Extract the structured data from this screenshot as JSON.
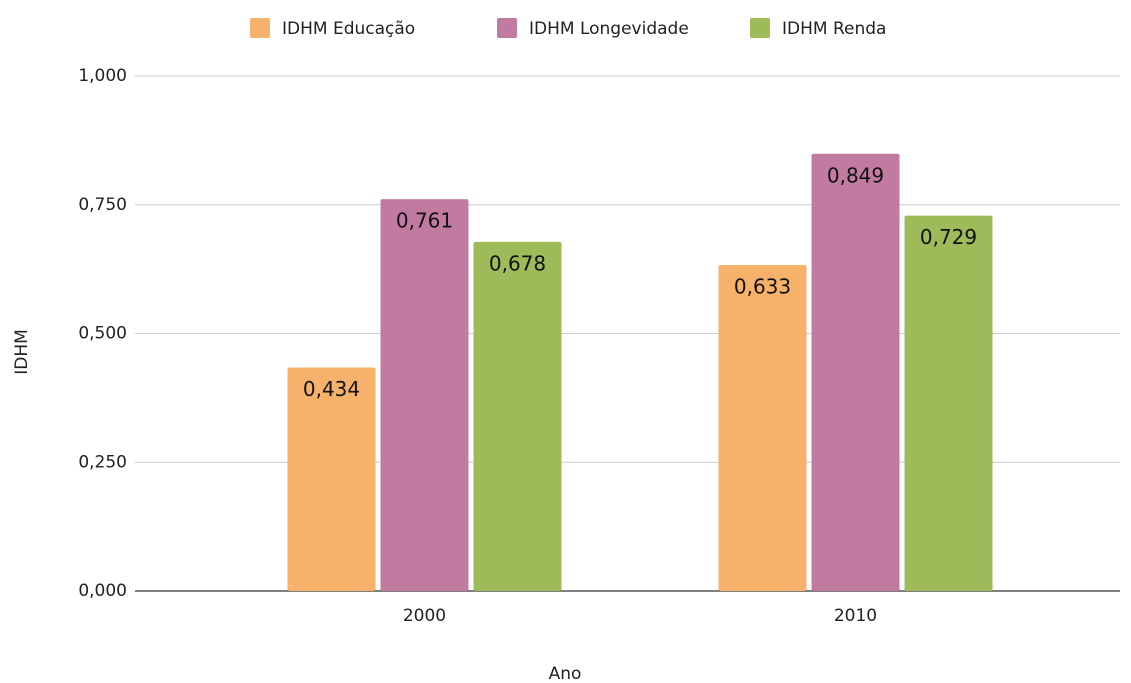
{
  "chart_data": {
    "type": "bar",
    "categories": [
      "2000",
      "2010"
    ],
    "series": [
      {
        "name": "IDHM Educação",
        "color": "#f6b26b",
        "values": [
          0.434,
          0.633
        ],
        "value_labels": [
          "0,434",
          "0,633"
        ]
      },
      {
        "name": "IDHM Longevidade",
        "color": "#c27ba0",
        "values": [
          0.761,
          0.849
        ],
        "value_labels": [
          "0,761",
          "0,849"
        ]
      },
      {
        "name": "IDHM Renda",
        "color": "#9dbb58",
        "values": [
          0.678,
          0.729
        ],
        "value_labels": [
          "0,678",
          "0,729"
        ]
      }
    ],
    "ylim": [
      0,
      1
    ],
    "yticks": [
      {
        "value": 0,
        "label": "0,000"
      },
      {
        "value": 0.25,
        "label": "0,250"
      },
      {
        "value": 0.5,
        "label": "0,500"
      },
      {
        "value": 0.75,
        "label": "0,750"
      },
      {
        "value": 1,
        "label": "1,000"
      }
    ],
    "y_label": "IDHM",
    "x_label": "Ano",
    "grid": true,
    "legend": "top"
  }
}
